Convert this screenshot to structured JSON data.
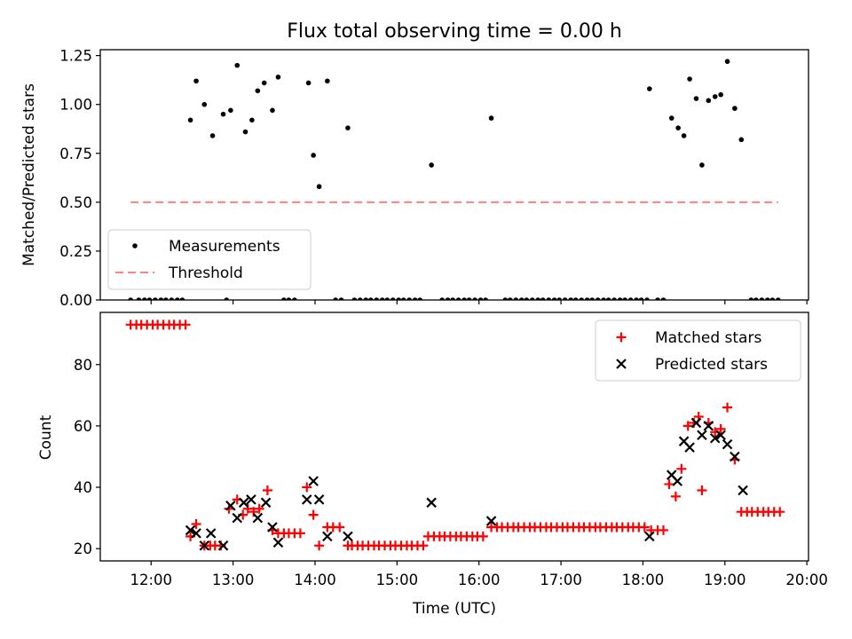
{
  "figure": {
    "title": "Flux total observing time = 0.00 h",
    "xlabel": "Time (UTC)"
  },
  "chart_data": [
    {
      "type": "scatter",
      "ylabel": "Matched/Predicted stars",
      "xlim": [
        11.38,
        20.02
      ],
      "ylim": [
        0,
        1.28
      ],
      "yticks": [
        0,
        0.25,
        0.5,
        0.75,
        1.0,
        1.25
      ],
      "ytick_labels": [
        "0.00",
        "0.25",
        "0.50",
        "0.75",
        "1.00",
        "1.25"
      ],
      "legend_position": "lower-left",
      "series": [
        {
          "name": "Measurements",
          "marker": "dot",
          "color": "#000000",
          "points": [
            [
              11.75,
              0
            ],
            [
              11.85,
              0
            ],
            [
              11.92,
              0
            ],
            [
              11.98,
              0
            ],
            [
              12.05,
              0
            ],
            [
              12.12,
              0
            ],
            [
              12.18,
              0
            ],
            [
              12.25,
              0
            ],
            [
              12.32,
              0
            ],
            [
              12.38,
              0
            ],
            [
              12.92,
              0
            ],
            [
              13.62,
              0
            ],
            [
              13.68,
              0
            ],
            [
              13.75,
              0
            ],
            [
              14.25,
              0
            ],
            [
              14.32,
              0
            ],
            [
              14.48,
              0
            ],
            [
              14.55,
              0
            ],
            [
              14.62,
              0
            ],
            [
              14.68,
              0
            ],
            [
              14.75,
              0
            ],
            [
              14.82,
              0
            ],
            [
              14.88,
              0
            ],
            [
              14.95,
              0
            ],
            [
              15.02,
              0
            ],
            [
              15.08,
              0
            ],
            [
              15.15,
              0
            ],
            [
              15.22,
              0
            ],
            [
              15.28,
              0
            ],
            [
              15.55,
              0
            ],
            [
              15.62,
              0
            ],
            [
              15.68,
              0
            ],
            [
              15.75,
              0
            ],
            [
              15.82,
              0
            ],
            [
              15.88,
              0
            ],
            [
              15.95,
              0
            ],
            [
              16.02,
              0
            ],
            [
              16.08,
              0
            ],
            [
              16.32,
              0
            ],
            [
              16.38,
              0
            ],
            [
              16.45,
              0
            ],
            [
              16.52,
              0
            ],
            [
              16.58,
              0
            ],
            [
              16.65,
              0
            ],
            [
              16.72,
              0
            ],
            [
              16.78,
              0
            ],
            [
              16.85,
              0
            ],
            [
              16.92,
              0
            ],
            [
              16.98,
              0
            ],
            [
              17.05,
              0
            ],
            [
              17.12,
              0
            ],
            [
              17.18,
              0
            ],
            [
              17.25,
              0
            ],
            [
              17.32,
              0
            ],
            [
              17.38,
              0
            ],
            [
              17.45,
              0
            ],
            [
              17.52,
              0
            ],
            [
              17.58,
              0
            ],
            [
              17.65,
              0
            ],
            [
              17.72,
              0
            ],
            [
              17.78,
              0
            ],
            [
              17.85,
              0
            ],
            [
              17.92,
              0
            ],
            [
              17.98,
              0
            ],
            [
              18.05,
              0
            ],
            [
              18.18,
              0
            ],
            [
              18.25,
              0
            ],
            [
              19.32,
              0
            ],
            [
              19.38,
              0
            ],
            [
              19.45,
              0
            ],
            [
              19.52,
              0
            ],
            [
              19.58,
              0
            ],
            [
              19.65,
              0
            ],
            [
              12.48,
              0.92
            ],
            [
              12.55,
              1.12
            ],
            [
              12.65,
              1.0
            ],
            [
              12.75,
              0.84
            ],
            [
              12.88,
              0.95
            ],
            [
              12.97,
              0.97
            ],
            [
              13.05,
              1.2
            ],
            [
              13.15,
              0.86
            ],
            [
              13.23,
              0.92
            ],
            [
              13.3,
              1.07
            ],
            [
              13.38,
              1.11
            ],
            [
              13.48,
              0.97
            ],
            [
              13.55,
              1.14
            ],
            [
              13.92,
              1.11
            ],
            [
              13.98,
              0.74
            ],
            [
              14.05,
              0.58
            ],
            [
              14.15,
              1.12
            ],
            [
              14.4,
              0.88
            ],
            [
              15.42,
              0.69
            ],
            [
              16.15,
              0.93
            ],
            [
              18.08,
              1.08
            ],
            [
              18.35,
              0.93
            ],
            [
              18.43,
              0.88
            ],
            [
              18.5,
              0.84
            ],
            [
              18.57,
              1.13
            ],
            [
              18.65,
              1.03
            ],
            [
              18.72,
              0.69
            ],
            [
              18.8,
              1.02
            ],
            [
              18.88,
              1.04
            ],
            [
              18.95,
              1.05
            ],
            [
              19.03,
              1.22
            ],
            [
              19.12,
              0.98
            ],
            [
              19.2,
              0.82
            ]
          ]
        },
        {
          "name": "Threshold",
          "style": "dashed",
          "color": "#ff8080",
          "x": [
            11.75,
            19.65
          ],
          "y": [
            0.5,
            0.5
          ]
        }
      ]
    },
    {
      "type": "scatter",
      "ylabel": "Count",
      "xlim": [
        11.38,
        20.02
      ],
      "ylim": [
        16,
        97
      ],
      "yticks": [
        20,
        40,
        60,
        80
      ],
      "ytick_labels": [
        "20",
        "40",
        "60",
        "80"
      ],
      "xticks": [
        12,
        13,
        14,
        15,
        16,
        17,
        18,
        19,
        20
      ],
      "xtick_labels": [
        "12:00",
        "13:00",
        "14:00",
        "15:00",
        "16:00",
        "17:00",
        "18:00",
        "19:00",
        "20:00"
      ],
      "legend_position": "upper-right",
      "series": [
        {
          "name": "Matched stars",
          "marker": "plus",
          "color": "#ff0000",
          "points": [
            [
              11.75,
              93
            ],
            [
              11.82,
              93
            ],
            [
              11.88,
              93
            ],
            [
              11.95,
              93
            ],
            [
              12.02,
              93
            ],
            [
              12.08,
              93
            ],
            [
              12.15,
              93
            ],
            [
              12.22,
              93
            ],
            [
              12.28,
              93
            ],
            [
              12.35,
              93
            ],
            [
              12.42,
              93
            ],
            [
              12.48,
              24
            ],
            [
              12.55,
              28
            ],
            [
              12.65,
              21
            ],
            [
              12.72,
              21
            ],
            [
              12.78,
              21
            ],
            [
              12.85,
              21
            ],
            [
              12.95,
              33
            ],
            [
              13.05,
              36
            ],
            [
              13.12,
              31
            ],
            [
              13.18,
              33
            ],
            [
              13.25,
              32
            ],
            [
              13.32,
              33
            ],
            [
              13.42,
              39
            ],
            [
              13.48,
              26
            ],
            [
              13.55,
              25
            ],
            [
              13.62,
              25
            ],
            [
              13.68,
              25
            ],
            [
              13.75,
              25
            ],
            [
              13.82,
              25
            ],
            [
              13.9,
              40
            ],
            [
              13.98,
              31
            ],
            [
              14.05,
              21
            ],
            [
              14.15,
              27
            ],
            [
              14.22,
              27
            ],
            [
              14.3,
              27
            ],
            [
              14.4,
              21
            ],
            [
              14.45,
              21
            ],
            [
              14.52,
              21
            ],
            [
              14.58,
              21
            ],
            [
              14.65,
              21
            ],
            [
              14.72,
              21
            ],
            [
              14.78,
              21
            ],
            [
              14.85,
              21
            ],
            [
              14.92,
              21
            ],
            [
              14.98,
              21
            ],
            [
              15.05,
              21
            ],
            [
              15.12,
              21
            ],
            [
              15.18,
              21
            ],
            [
              15.25,
              21
            ],
            [
              15.32,
              21
            ],
            [
              15.38,
              24
            ],
            [
              15.45,
              24
            ],
            [
              15.52,
              24
            ],
            [
              15.58,
              24
            ],
            [
              15.65,
              24
            ],
            [
              15.72,
              24
            ],
            [
              15.78,
              24
            ],
            [
              15.85,
              24
            ],
            [
              15.92,
              24
            ],
            [
              15.98,
              24
            ],
            [
              16.05,
              24
            ],
            [
              16.15,
              27
            ],
            [
              16.22,
              27
            ],
            [
              16.28,
              27
            ],
            [
              16.35,
              27
            ],
            [
              16.42,
              27
            ],
            [
              16.48,
              27
            ],
            [
              16.55,
              27
            ],
            [
              16.62,
              27
            ],
            [
              16.68,
              27
            ],
            [
              16.75,
              27
            ],
            [
              16.82,
              27
            ],
            [
              16.88,
              27
            ],
            [
              16.95,
              27
            ],
            [
              17.02,
              27
            ],
            [
              17.08,
              27
            ],
            [
              17.15,
              27
            ],
            [
              17.22,
              27
            ],
            [
              17.28,
              27
            ],
            [
              17.35,
              27
            ],
            [
              17.42,
              27
            ],
            [
              17.48,
              27
            ],
            [
              17.55,
              27
            ],
            [
              17.62,
              27
            ],
            [
              17.68,
              27
            ],
            [
              17.75,
              27
            ],
            [
              17.82,
              27
            ],
            [
              17.88,
              27
            ],
            [
              17.95,
              27
            ],
            [
              18.02,
              27
            ],
            [
              18.1,
              26
            ],
            [
              18.18,
              26
            ],
            [
              18.25,
              26
            ],
            [
              18.32,
              41
            ],
            [
              18.4,
              37
            ],
            [
              18.47,
              46
            ],
            [
              18.55,
              60
            ],
            [
              18.62,
              61
            ],
            [
              18.68,
              63
            ],
            [
              18.72,
              39
            ],
            [
              18.8,
              61
            ],
            [
              18.88,
              58
            ],
            [
              18.95,
              59
            ],
            [
              19.03,
              66
            ],
            [
              19.12,
              49
            ],
            [
              19.2,
              32
            ],
            [
              19.27,
              32
            ],
            [
              19.33,
              32
            ],
            [
              19.4,
              32
            ],
            [
              19.47,
              32
            ],
            [
              19.53,
              32
            ],
            [
              19.6,
              32
            ],
            [
              19.67,
              32
            ]
          ]
        },
        {
          "name": "Predicted stars",
          "marker": "x",
          "color": "#000000",
          "points": [
            [
              12.48,
              26
            ],
            [
              12.55,
              25
            ],
            [
              12.65,
              21
            ],
            [
              12.73,
              25
            ],
            [
              12.88,
              21
            ],
            [
              12.97,
              34
            ],
            [
              13.05,
              30
            ],
            [
              13.13,
              35
            ],
            [
              13.22,
              36
            ],
            [
              13.3,
              30
            ],
            [
              13.4,
              35
            ],
            [
              13.48,
              27
            ],
            [
              13.55,
              22
            ],
            [
              13.9,
              36
            ],
            [
              13.98,
              42
            ],
            [
              14.05,
              36
            ],
            [
              14.15,
              24
            ],
            [
              14.4,
              24
            ],
            [
              15.42,
              35
            ],
            [
              16.15,
              29
            ],
            [
              18.08,
              24
            ],
            [
              18.35,
              44
            ],
            [
              18.42,
              42
            ],
            [
              18.5,
              55
            ],
            [
              18.57,
              53
            ],
            [
              18.65,
              61
            ],
            [
              18.72,
              57
            ],
            [
              18.8,
              60
            ],
            [
              18.88,
              56
            ],
            [
              18.95,
              57
            ],
            [
              19.03,
              54
            ],
            [
              19.12,
              50
            ],
            [
              19.22,
              39
            ]
          ]
        }
      ]
    }
  ]
}
